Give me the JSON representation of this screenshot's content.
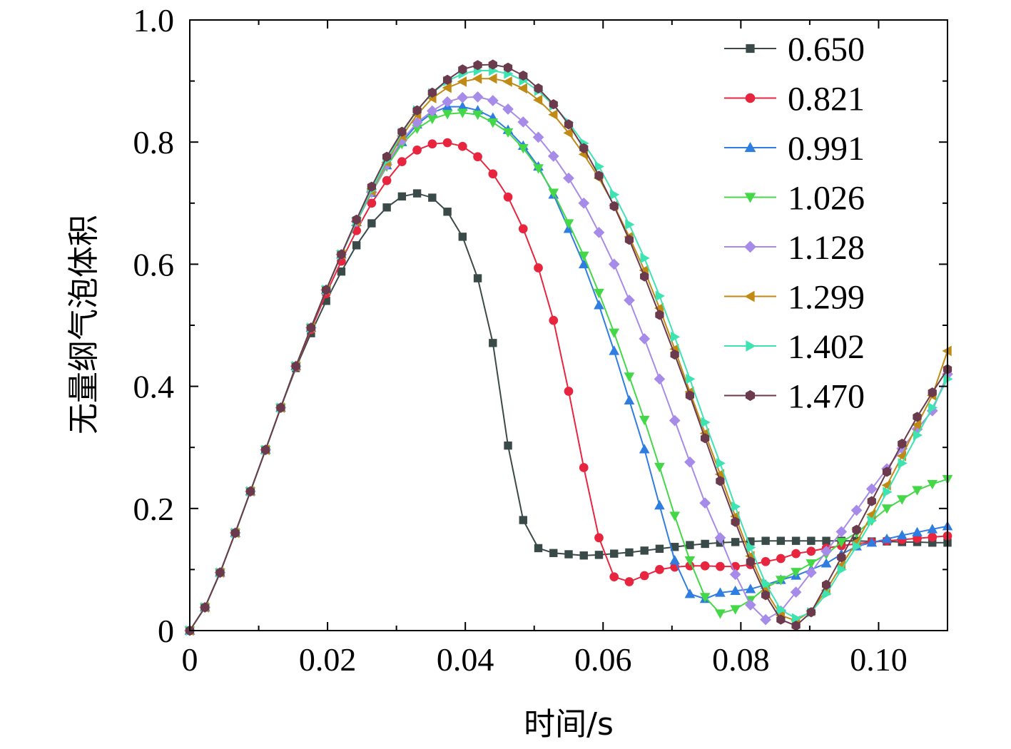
{
  "chart_data": {
    "type": "line",
    "title": "",
    "xlabel": "时间/s",
    "ylabel": "无量纲气泡体积",
    "xlim": [
      0,
      0.11
    ],
    "ylim": [
      0,
      1.0
    ],
    "x_ticks": [
      0,
      0.02,
      0.04,
      0.06,
      0.08,
      0.1
    ],
    "x_tick_labels": [
      "0",
      "0.02",
      "0.04",
      "0.06",
      "0.08",
      "0.10"
    ],
    "y_ticks": [
      0,
      0.2,
      0.4,
      0.6,
      0.8,
      1.0
    ],
    "y_tick_labels": [
      "0",
      "0.2",
      "0.4",
      "0.6",
      "0.8",
      "1.0"
    ],
    "grid": false,
    "legend_position": "top-right",
    "series": [
      {
        "name": "0.650",
        "color": "#3a4a48",
        "marker": "square",
        "x": [
          0,
          0.0022,
          0.0044,
          0.0066,
          0.0088,
          0.011,
          0.0132,
          0.0154,
          0.0176,
          0.0198,
          0.022,
          0.0242,
          0.0264,
          0.0286,
          0.0308,
          0.033,
          0.0352,
          0.0374,
          0.0396,
          0.0418,
          0.044,
          0.0462,
          0.0484,
          0.0506,
          0.0528,
          0.055,
          0.0572,
          0.0594,
          0.0616,
          0.0638,
          0.066,
          0.0682,
          0.0704,
          0.0726,
          0.0748,
          0.077,
          0.0792,
          0.0814,
          0.0836,
          0.0858,
          0.088,
          0.0902,
          0.0924,
          0.0946,
          0.0968,
          0.099,
          0.1012,
          0.1034,
          0.1056,
          0.1078,
          0.11
        ],
        "y": [
          0,
          0.038,
          0.095,
          0.16,
          0.228,
          0.296,
          0.365,
          0.43,
          0.487,
          0.54,
          0.588,
          0.631,
          0.667,
          0.693,
          0.711,
          0.716,
          0.709,
          0.686,
          0.645,
          0.577,
          0.471,
          0.303,
          0.181,
          0.135,
          0.127,
          0.125,
          0.123,
          0.124,
          0.126,
          0.128,
          0.131,
          0.134,
          0.137,
          0.14,
          0.142,
          0.144,
          0.145,
          0.146,
          0.147,
          0.147,
          0.147,
          0.147,
          0.147,
          0.147,
          0.147,
          0.146,
          0.146,
          0.145,
          0.145,
          0.144,
          0.144
        ]
      },
      {
        "name": "0.821",
        "color": "#e8253f",
        "marker": "circle",
        "x": [
          0,
          0.0022,
          0.0044,
          0.0066,
          0.0088,
          0.011,
          0.0132,
          0.0154,
          0.0176,
          0.0198,
          0.022,
          0.0242,
          0.0264,
          0.0286,
          0.0308,
          0.033,
          0.0352,
          0.0374,
          0.0396,
          0.0418,
          0.044,
          0.0462,
          0.0484,
          0.0506,
          0.0528,
          0.055,
          0.0572,
          0.0594,
          0.0616,
          0.0638,
          0.066,
          0.0682,
          0.0704,
          0.0726,
          0.0748,
          0.077,
          0.0792,
          0.0814,
          0.0836,
          0.0858,
          0.088,
          0.0902,
          0.0924,
          0.0946,
          0.0968,
          0.099,
          0.1012,
          0.1034,
          0.1056,
          0.1078,
          0.11
        ],
        "y": [
          0,
          0.038,
          0.095,
          0.16,
          0.228,
          0.296,
          0.365,
          0.432,
          0.493,
          0.552,
          0.605,
          0.655,
          0.7,
          0.737,
          0.768,
          0.787,
          0.797,
          0.799,
          0.793,
          0.776,
          0.748,
          0.71,
          0.658,
          0.594,
          0.508,
          0.392,
          0.267,
          0.152,
          0.088,
          0.08,
          0.09,
          0.1,
          0.104,
          0.106,
          0.106,
          0.105,
          0.105,
          0.108,
          0.113,
          0.118,
          0.126,
          0.13,
          0.135,
          0.139,
          0.142,
          0.145,
          0.147,
          0.149,
          0.151,
          0.153,
          0.155
        ]
      },
      {
        "name": "0.991",
        "color": "#2f7de0",
        "marker": "triangle-up",
        "x": [
          0,
          0.0022,
          0.0044,
          0.0066,
          0.0088,
          0.011,
          0.0132,
          0.0154,
          0.0176,
          0.0198,
          0.022,
          0.0242,
          0.0264,
          0.0286,
          0.0308,
          0.033,
          0.0352,
          0.0374,
          0.0396,
          0.0418,
          0.044,
          0.0462,
          0.0484,
          0.0506,
          0.0528,
          0.055,
          0.0572,
          0.0594,
          0.0616,
          0.0638,
          0.066,
          0.0682,
          0.0704,
          0.0726,
          0.0748,
          0.077,
          0.0792,
          0.0814,
          0.0836,
          0.0858,
          0.088,
          0.0902,
          0.0924,
          0.0946,
          0.0968,
          0.099,
          0.1012,
          0.1034,
          0.1056,
          0.1078,
          0.11
        ],
        "y": [
          0,
          0.038,
          0.095,
          0.16,
          0.228,
          0.296,
          0.365,
          0.433,
          0.496,
          0.558,
          0.616,
          0.669,
          0.717,
          0.762,
          0.8,
          0.829,
          0.848,
          0.858,
          0.858,
          0.852,
          0.84,
          0.82,
          0.794,
          0.76,
          0.714,
          0.658,
          0.6,
          0.533,
          0.458,
          0.377,
          0.297,
          0.205,
          0.115,
          0.06,
          0.052,
          0.062,
          0.065,
          0.068,
          0.075,
          0.083,
          0.09,
          0.1,
          0.11,
          0.125,
          0.138,
          0.144,
          0.15,
          0.156,
          0.161,
          0.166,
          0.171
        ]
      },
      {
        "name": "1.026",
        "color": "#44d848",
        "marker": "triangle-down",
        "x": [
          0,
          0.0022,
          0.0044,
          0.0066,
          0.0088,
          0.011,
          0.0132,
          0.0154,
          0.0176,
          0.0198,
          0.022,
          0.0242,
          0.0264,
          0.0286,
          0.0308,
          0.033,
          0.0352,
          0.0374,
          0.0396,
          0.0418,
          0.044,
          0.0462,
          0.0484,
          0.0506,
          0.0528,
          0.055,
          0.0572,
          0.0594,
          0.0616,
          0.0638,
          0.066,
          0.0682,
          0.0704,
          0.0726,
          0.0748,
          0.077,
          0.0792,
          0.0814,
          0.0836,
          0.0858,
          0.088,
          0.0902,
          0.0924,
          0.0946,
          0.0968,
          0.099,
          0.1012,
          0.1034,
          0.1056,
          0.1078,
          0.11
        ],
        "y": [
          0,
          0.038,
          0.095,
          0.16,
          0.228,
          0.296,
          0.365,
          0.433,
          0.496,
          0.558,
          0.616,
          0.67,
          0.717,
          0.76,
          0.797,
          0.822,
          0.838,
          0.846,
          0.848,
          0.845,
          0.832,
          0.816,
          0.79,
          0.757,
          0.717,
          0.667,
          0.614,
          0.553,
          0.488,
          0.416,
          0.345,
          0.268,
          0.188,
          0.115,
          0.055,
          0.028,
          0.035,
          0.05,
          0.07,
          0.083,
          0.096,
          0.11,
          0.125,
          0.145,
          0.16,
          0.18,
          0.2,
          0.215,
          0.23,
          0.24,
          0.248
        ]
      },
      {
        "name": "1.128",
        "color": "#a78be8",
        "marker": "diamond",
        "x": [
          0,
          0.0022,
          0.0044,
          0.0066,
          0.0088,
          0.011,
          0.0132,
          0.0154,
          0.0176,
          0.0198,
          0.022,
          0.0242,
          0.0264,
          0.0286,
          0.0308,
          0.033,
          0.0352,
          0.0374,
          0.0396,
          0.0418,
          0.044,
          0.0462,
          0.0484,
          0.0506,
          0.0528,
          0.055,
          0.0572,
          0.0594,
          0.0616,
          0.0638,
          0.066,
          0.0682,
          0.0704,
          0.0726,
          0.0748,
          0.077,
          0.0792,
          0.0814,
          0.0836,
          0.0858,
          0.088,
          0.0902,
          0.0924,
          0.0946,
          0.0968,
          0.099,
          0.1012,
          0.1034,
          0.1056,
          0.1078,
          0.11
        ],
        "y": [
          0,
          0.038,
          0.095,
          0.16,
          0.228,
          0.296,
          0.365,
          0.433,
          0.496,
          0.558,
          0.616,
          0.67,
          0.718,
          0.763,
          0.803,
          0.832,
          0.851,
          0.866,
          0.873,
          0.874,
          0.868,
          0.854,
          0.833,
          0.808,
          0.777,
          0.741,
          0.7,
          0.652,
          0.6,
          0.541,
          0.478,
          0.412,
          0.344,
          0.276,
          0.209,
          0.152,
          0.092,
          0.042,
          0.018,
          0.032,
          0.063,
          0.095,
          0.13,
          0.162,
          0.197,
          0.232,
          0.265,
          0.298,
          0.33,
          0.36,
          0.42
        ]
      },
      {
        "name": "1.299",
        "color": "#c08a14",
        "marker": "triangle-left",
        "x": [
          0,
          0.0022,
          0.0044,
          0.0066,
          0.0088,
          0.011,
          0.0132,
          0.0154,
          0.0176,
          0.0198,
          0.022,
          0.0242,
          0.0264,
          0.0286,
          0.0308,
          0.033,
          0.0352,
          0.0374,
          0.0396,
          0.0418,
          0.044,
          0.0462,
          0.0484,
          0.0506,
          0.0528,
          0.055,
          0.0572,
          0.0594,
          0.0616,
          0.0638,
          0.066,
          0.0682,
          0.0704,
          0.0726,
          0.0748,
          0.077,
          0.0792,
          0.0814,
          0.0836,
          0.0858,
          0.088,
          0.0902,
          0.0924,
          0.0946,
          0.0968,
          0.099,
          0.1012,
          0.1034,
          0.1056,
          0.1078,
          0.11
        ],
        "y": [
          0,
          0.038,
          0.095,
          0.16,
          0.228,
          0.296,
          0.365,
          0.433,
          0.496,
          0.558,
          0.616,
          0.67,
          0.72,
          0.767,
          0.81,
          0.845,
          0.872,
          0.889,
          0.899,
          0.904,
          0.904,
          0.899,
          0.888,
          0.869,
          0.845,
          0.815,
          0.78,
          0.741,
          0.696,
          0.645,
          0.59,
          0.528,
          0.461,
          0.391,
          0.323,
          0.256,
          0.187,
          0.122,
          0.065,
          0.025,
          0.016,
          0.032,
          0.066,
          0.107,
          0.145,
          0.19,
          0.238,
          0.286,
          0.337,
          0.385,
          0.458
        ]
      },
      {
        "name": "1.402",
        "color": "#3ee3b2",
        "marker": "triangle-right",
        "x": [
          0,
          0.0022,
          0.0044,
          0.0066,
          0.0088,
          0.011,
          0.0132,
          0.0154,
          0.0176,
          0.0198,
          0.022,
          0.0242,
          0.0264,
          0.0286,
          0.0308,
          0.033,
          0.0352,
          0.0374,
          0.0396,
          0.0418,
          0.044,
          0.0462,
          0.0484,
          0.0506,
          0.0528,
          0.055,
          0.0572,
          0.0594,
          0.0616,
          0.0638,
          0.066,
          0.0682,
          0.0704,
          0.0726,
          0.0748,
          0.077,
          0.0792,
          0.0814,
          0.0836,
          0.0858,
          0.088,
          0.0902,
          0.0924,
          0.0946,
          0.0968,
          0.099,
          0.1012,
          0.1034,
          0.1056,
          0.1078,
          0.11
        ],
        "y": [
          0,
          0.038,
          0.095,
          0.16,
          0.228,
          0.296,
          0.365,
          0.433,
          0.496,
          0.558,
          0.616,
          0.67,
          0.722,
          0.77,
          0.815,
          0.852,
          0.88,
          0.9,
          0.912,
          0.917,
          0.917,
          0.912,
          0.901,
          0.884,
          0.86,
          0.832,
          0.798,
          0.76,
          0.714,
          0.665,
          0.61,
          0.548,
          0.481,
          0.412,
          0.341,
          0.274,
          0.203,
          0.136,
          0.077,
          0.034,
          0.02,
          0.03,
          0.06,
          0.1,
          0.138,
          0.18,
          0.227,
          0.274,
          0.32,
          0.365,
          0.412
        ]
      },
      {
        "name": "1.470",
        "color": "#6b3a4c",
        "marker": "hexagon",
        "x": [
          0,
          0.0022,
          0.0044,
          0.0066,
          0.0088,
          0.011,
          0.0132,
          0.0154,
          0.0176,
          0.0198,
          0.022,
          0.0242,
          0.0264,
          0.0286,
          0.0308,
          0.033,
          0.0352,
          0.0374,
          0.0396,
          0.0418,
          0.044,
          0.0462,
          0.0484,
          0.0506,
          0.0528,
          0.055,
          0.0572,
          0.0594,
          0.0616,
          0.0638,
          0.066,
          0.0682,
          0.0704,
          0.0726,
          0.0748,
          0.077,
          0.0792,
          0.0814,
          0.0836,
          0.0858,
          0.088,
          0.0902,
          0.0924,
          0.0946,
          0.0968,
          0.099,
          0.1012,
          0.1034,
          0.1056,
          0.1078,
          0.11
        ],
        "y": [
          0,
          0.038,
          0.095,
          0.16,
          0.228,
          0.296,
          0.365,
          0.433,
          0.496,
          0.558,
          0.616,
          0.673,
          0.727,
          0.776,
          0.817,
          0.852,
          0.881,
          0.902,
          0.919,
          0.926,
          0.927,
          0.922,
          0.909,
          0.888,
          0.862,
          0.829,
          0.79,
          0.745,
          0.695,
          0.64,
          0.58,
          0.517,
          0.452,
          0.385,
          0.315,
          0.245,
          0.178,
          0.113,
          0.058,
          0.018,
          0.008,
          0.03,
          0.075,
          0.12,
          0.165,
          0.212,
          0.26,
          0.306,
          0.35,
          0.39,
          0.428
        ]
      }
    ]
  }
}
